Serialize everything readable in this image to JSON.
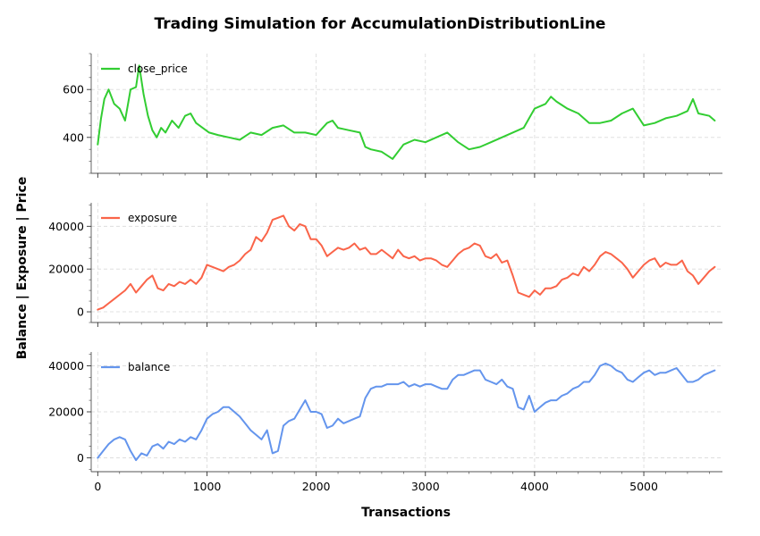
{
  "chart_data": {
    "type": "line",
    "title": "Trading Simulation for AccumulationDistributionLine",
    "xlabel": "Transactions",
    "ylabel": "Balance | Exposure | Price",
    "x_ticks": [
      0,
      1000,
      2000,
      3000,
      4000,
      5000
    ],
    "xlim": [
      -60,
      5720
    ],
    "grid": true,
    "legend_position": "upper-left",
    "panels": [
      {
        "name": "close_price",
        "color": "#32cd32",
        "ylim": [
          250,
          750
        ],
        "y_ticks": [
          400,
          600
        ],
        "x": [
          0,
          30,
          60,
          100,
          150,
          200,
          250,
          300,
          350,
          380,
          420,
          460,
          500,
          540,
          580,
          620,
          680,
          740,
          800,
          850,
          900,
          960,
          1020,
          1100,
          1200,
          1300,
          1400,
          1500,
          1600,
          1700,
          1800,
          1900,
          2000,
          2100,
          2150,
          2200,
          2300,
          2400,
          2450,
          2500,
          2600,
          2700,
          2800,
          2900,
          3000,
          3100,
          3200,
          3300,
          3400,
          3500,
          3600,
          3700,
          3800,
          3900,
          4000,
          4100,
          4150,
          4200,
          4300,
          4400,
          4500,
          4600,
          4700,
          4800,
          4900,
          5000,
          5100,
          5200,
          5300,
          5400,
          5450,
          5500,
          5600,
          5650
        ],
        "values": [
          370,
          480,
          560,
          600,
          540,
          520,
          470,
          600,
          610,
          700,
          580,
          490,
          430,
          400,
          440,
          420,
          470,
          440,
          490,
          500,
          460,
          440,
          420,
          410,
          400,
          390,
          420,
          410,
          440,
          450,
          420,
          420,
          410,
          460,
          470,
          440,
          430,
          420,
          360,
          350,
          340,
          310,
          370,
          390,
          380,
          400,
          420,
          380,
          350,
          360,
          380,
          400,
          420,
          440,
          520,
          540,
          570,
          550,
          520,
          500,
          460,
          460,
          470,
          500,
          520,
          450,
          460,
          480,
          490,
          510,
          560,
          500,
          490,
          470
        ]
      },
      {
        "name": "exposure",
        "color": "#fa6449",
        "ylim": [
          -5000,
          51000
        ],
        "y_ticks": [
          0,
          20000,
          40000
        ],
        "x": [
          0,
          50,
          100,
          150,
          200,
          250,
          300,
          350,
          400,
          450,
          500,
          550,
          600,
          650,
          700,
          750,
          800,
          850,
          900,
          950,
          1000,
          1050,
          1100,
          1150,
          1200,
          1250,
          1300,
          1350,
          1400,
          1450,
          1500,
          1550,
          1600,
          1650,
          1700,
          1750,
          1800,
          1850,
          1900,
          1950,
          2000,
          2050,
          2100,
          2150,
          2200,
          2250,
          2300,
          2350,
          2400,
          2450,
          2500,
          2550,
          2600,
          2650,
          2700,
          2750,
          2800,
          2850,
          2900,
          2950,
          3000,
          3050,
          3100,
          3150,
          3200,
          3250,
          3300,
          3350,
          3400,
          3450,
          3500,
          3550,
          3600,
          3650,
          3700,
          3750,
          3800,
          3850,
          3900,
          3950,
          4000,
          4050,
          4100,
          4150,
          4200,
          4250,
          4300,
          4350,
          4400,
          4450,
          4500,
          4550,
          4600,
          4650,
          4700,
          4750,
          4800,
          4850,
          4900,
          4950,
          5000,
          5050,
          5100,
          5150,
          5200,
          5250,
          5300,
          5350,
          5400,
          5450,
          5500,
          5550,
          5600,
          5650
        ],
        "values": [
          1000,
          2000,
          4000,
          6000,
          8000,
          10000,
          13000,
          9000,
          12000,
          15000,
          17000,
          11000,
          10000,
          13000,
          12000,
          14000,
          13000,
          15000,
          13000,
          16000,
          22000,
          21000,
          20000,
          19000,
          21000,
          22000,
          24000,
          27000,
          29000,
          35000,
          33000,
          37000,
          43000,
          44000,
          45000,
          40000,
          38000,
          41000,
          40000,
          34000,
          34000,
          31000,
          26000,
          28000,
          30000,
          29000,
          30000,
          32000,
          29000,
          30000,
          27000,
          27000,
          29000,
          27000,
          25000,
          29000,
          26000,
          25000,
          26000,
          24000,
          25000,
          25000,
          24000,
          22000,
          21000,
          24000,
          27000,
          29000,
          30000,
          32000,
          31000,
          26000,
          25000,
          27000,
          23000,
          24000,
          17000,
          9000,
          8000,
          7000,
          10000,
          8000,
          11000,
          11000,
          12000,
          15000,
          16000,
          18000,
          17000,
          21000,
          19000,
          22000,
          26000,
          28000,
          27000,
          25000,
          23000,
          20000,
          16000,
          19000,
          22000,
          24000,
          25000,
          21000,
          23000,
          22000,
          22000,
          24000,
          19000,
          17000,
          13000,
          16000,
          19000,
          21000
        ]
      },
      {
        "name": "balance",
        "color": "#6495ed",
        "ylim": [
          -6000,
          46000
        ],
        "y_ticks": [
          0,
          20000,
          40000
        ],
        "x": [
          0,
          50,
          100,
          150,
          200,
          250,
          300,
          350,
          400,
          450,
          500,
          550,
          600,
          650,
          700,
          750,
          800,
          850,
          900,
          950,
          1000,
          1050,
          1100,
          1150,
          1200,
          1250,
          1300,
          1350,
          1400,
          1450,
          1500,
          1550,
          1600,
          1650,
          1700,
          1750,
          1800,
          1850,
          1900,
          1950,
          2000,
          2050,
          2100,
          2150,
          2200,
          2250,
          2300,
          2350,
          2400,
          2450,
          2500,
          2550,
          2600,
          2650,
          2700,
          2750,
          2800,
          2850,
          2900,
          2950,
          3000,
          3050,
          3100,
          3150,
          3200,
          3250,
          3300,
          3350,
          3400,
          3450,
          3500,
          3550,
          3600,
          3650,
          3700,
          3750,
          3800,
          3850,
          3900,
          3950,
          4000,
          4050,
          4100,
          4150,
          4200,
          4250,
          4300,
          4350,
          4400,
          4450,
          4500,
          4550,
          4600,
          4650,
          4700,
          4750,
          4800,
          4850,
          4900,
          4950,
          5000,
          5050,
          5100,
          5150,
          5200,
          5250,
          5300,
          5350,
          5400,
          5450,
          5500,
          5550,
          5600,
          5650
        ],
        "values": [
          0,
          3000,
          6000,
          8000,
          9000,
          8000,
          3000,
          -1000,
          2000,
          1000,
          5000,
          6000,
          4000,
          7000,
          6000,
          8000,
          7000,
          9000,
          8000,
          12000,
          17000,
          19000,
          20000,
          22000,
          22000,
          20000,
          18000,
          15000,
          12000,
          10000,
          8000,
          12000,
          2000,
          3000,
          14000,
          16000,
          17000,
          21000,
          25000,
          20000,
          20000,
          19000,
          13000,
          14000,
          17000,
          15000,
          16000,
          17000,
          18000,
          26000,
          30000,
          31000,
          31000,
          32000,
          32000,
          32000,
          33000,
          31000,
          32000,
          31000,
          32000,
          32000,
          31000,
          30000,
          30000,
          34000,
          36000,
          36000,
          37000,
          38000,
          38000,
          34000,
          33000,
          32000,
          34000,
          31000,
          30000,
          22000,
          21000,
          27000,
          20000,
          22000,
          24000,
          25000,
          25000,
          27000,
          28000,
          30000,
          31000,
          33000,
          33000,
          36000,
          40000,
          41000,
          40000,
          38000,
          37000,
          34000,
          33000,
          35000,
          37000,
          38000,
          36000,
          37000,
          37000,
          38000,
          39000,
          36000,
          33000,
          33000,
          34000,
          36000,
          37000,
          38000
        ]
      }
    ]
  }
}
